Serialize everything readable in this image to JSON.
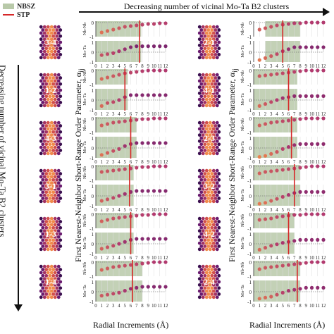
{
  "legend": {
    "nbsz_label": "NBSZ",
    "stp_label": "STP",
    "nbsz_color": "#b8c9a9",
    "stp_color": "#d62728"
  },
  "top_arrow_label": "Decreasing number of vicinal Mo-Ta B2 clusters",
  "left_arrow_label": "Decreasing number of vicinal Mo-Ta B2 clusters",
  "y_axis_title": "First Nearest-Neighbor Short-Range Order Parameter, α",
  "y_axis_title_sub": "ij",
  "x_axis_title": "Radial Increments (Å)",
  "colors": {
    "dot_dark": "#5a1a6e",
    "dot_mid": "#b23a6f",
    "dot_light": "#f08a4b",
    "grid": "#dddddd"
  },
  "chart_data": [
    {
      "type": "scatter",
      "column": "left",
      "structure_labels": [
        "3-4",
        "1-2",
        "4-3",
        "3-1",
        "1-3",
        "1-4"
      ],
      "x": [
        1,
        2,
        3,
        4,
        5,
        6,
        7,
        8,
        9,
        10,
        11,
        12
      ],
      "xlabel": "Radial Increments (Å)",
      "xticks": [
        "0",
        "1",
        "2",
        "3",
        "4",
        "5",
        "6",
        "7",
        "8",
        "9",
        "10",
        "11",
        "12"
      ],
      "rows": [
        {
          "label": "3-4",
          "stp": 7.5,
          "nbsz": [
            0,
            7.8
          ],
          "nbnb": [
            -0.7,
            -0.6,
            -0.5,
            -0.4,
            -0.3,
            -0.25,
            -0.2,
            -0.15,
            -0.1,
            -0.1,
            -0.05,
            -0.05
          ],
          "mota": [
            -0.3,
            -0.2,
            -0.1,
            0.1,
            0.3,
            0.5,
            0.6,
            0.6,
            0.6,
            0.6,
            0.6,
            0.6
          ]
        },
        {
          "label": "1-2",
          "stp": 5.0,
          "nbsz": [
            0,
            5.5
          ],
          "nbnb": [
            -0.6,
            -0.5,
            -0.4,
            -0.3,
            -0.2,
            -0.15,
            -0.1,
            -0.05,
            0,
            0,
            0,
            0
          ],
          "mota": [
            -0.6,
            -0.3,
            -0.2,
            0,
            0.3,
            0.5,
            0.5,
            0.5,
            0.5,
            0.5,
            0.5,
            0.5
          ]
        },
        {
          "label": "4-3",
          "stp": 6.0,
          "nbsz": [
            0,
            7.0
          ],
          "nbnb": [
            -0.5,
            -0.4,
            -0.3,
            -0.25,
            -0.2,
            -0.15,
            -0.1,
            -0.05,
            -0.05,
            0,
            0,
            0
          ],
          "mota": [
            -0.7,
            -0.5,
            -0.3,
            -0.1,
            0.2,
            0.4,
            0.5,
            0.5,
            0.5,
            0.5,
            0.5,
            0.5
          ]
        },
        {
          "label": "3-1",
          "stp": 5.8,
          "nbsz": [
            0,
            6.5
          ],
          "nbnb": [
            -0.4,
            -0.35,
            -0.3,
            -0.25,
            -0.2,
            -0.15,
            -0.1,
            -0.05,
            -0.05,
            0,
            0,
            0
          ],
          "mota": [
            -0.5,
            -0.35,
            -0.2,
            0,
            0.2,
            0.4,
            0.5,
            0.5,
            0.5,
            0.5,
            0.5,
            0.5
          ]
        },
        {
          "label": "1-3",
          "stp": 6.0,
          "nbsz": [
            0,
            6.5
          ],
          "nbnb": [
            -0.5,
            -0.4,
            -0.3,
            -0.25,
            -0.2,
            -0.15,
            -0.1,
            -0.05,
            -0.05,
            0,
            0,
            0
          ],
          "mota": [
            -0.5,
            -0.35,
            -0.2,
            0,
            0.2,
            0.4,
            0.5,
            0.5,
            0.5,
            0.5,
            0.5,
            0.5
          ]
        },
        {
          "label": "1-4",
          "stp": 6.3,
          "nbsz": [
            0,
            8.0
          ],
          "nbnb": [
            -0.55,
            -0.45,
            -0.35,
            -0.3,
            -0.25,
            -0.2,
            -0.15,
            -0.1,
            -0.05,
            0,
            0,
            0
          ],
          "mota": [
            -0.4,
            -0.3,
            -0.2,
            -0.1,
            0.1,
            0.3,
            0.4,
            0.5,
            0.5,
            0.5,
            0.5,
            0.5
          ]
        }
      ]
    },
    {
      "type": "scatter",
      "column": "right",
      "structure_labels": [
        "2-1",
        "4-1",
        "2-3",
        "3-2",
        "4-2",
        "2-4"
      ],
      "x": [
        1,
        2,
        3,
        4,
        5,
        6,
        7,
        8,
        9,
        10,
        11,
        12
      ],
      "xlabel": "Radial Increments (Å)",
      "xticks": [
        "0",
        "1",
        "2",
        "3",
        "4",
        "5",
        "6",
        "7",
        "8",
        "9",
        "10",
        "11",
        "12"
      ],
      "rows": [
        {
          "label": "2-1",
          "stp": 5.0,
          "nbsz": [
            2,
            8.0
          ],
          "nbnb": [
            -0.5,
            -0.4,
            -0.3,
            -0.2,
            -0.15,
            -0.1,
            -0.05,
            -0.05,
            0,
            0,
            0,
            0
          ],
          "mota": [
            -0.8,
            -0.6,
            -0.4,
            -0.2,
            0.1,
            0.3,
            0.5,
            0.5,
            0.5,
            0.5,
            0.5,
            0.5
          ]
        },
        {
          "label": "4-1",
          "stp": 6.0,
          "nbsz": [
            0,
            7.5
          ],
          "nbnb": [
            -0.4,
            -0.35,
            -0.3,
            -0.25,
            -0.2,
            -0.15,
            -0.1,
            -0.05,
            0,
            0,
            0,
            0
          ],
          "mota": [
            -0.6,
            -0.4,
            -0.2,
            0,
            0.2,
            0.3,
            0.4,
            0.4,
            0.4,
            0.4,
            0.4,
            0.4
          ]
        },
        {
          "label": "2-3",
          "stp": 6.5,
          "nbsz": [
            0,
            7.5
          ],
          "nbnb": [
            -0.5,
            -0.4,
            -0.3,
            -0.25,
            -0.2,
            -0.15,
            -0.1,
            -0.05,
            0,
            0,
            0,
            0
          ],
          "mota": [
            -0.9,
            -0.8,
            -0.6,
            -0.4,
            -0.1,
            0.1,
            0.3,
            0.4,
            0.4,
            0.4,
            0.4,
            0.4
          ]
        },
        {
          "label": "3-2",
          "stp": 7.0,
          "nbsz": [
            0,
            8.0
          ],
          "nbnb": [
            -0.5,
            -0.4,
            -0.35,
            -0.3,
            -0.25,
            -0.2,
            -0.15,
            -0.1,
            -0.05,
            0,
            0,
            0
          ],
          "mota": [
            -0.8,
            -0.7,
            -0.5,
            -0.3,
            -0.1,
            0.1,
            0.3,
            0.4,
            0.4,
            0.4,
            0.4,
            0.4
          ]
        },
        {
          "label": "4-2",
          "stp": 6.0,
          "nbsz": [
            0,
            7.0
          ],
          "nbnb": [
            -0.4,
            -0.35,
            -0.3,
            -0.2,
            -0.15,
            -0.1,
            -0.05,
            -0.05,
            0,
            0,
            0,
            0
          ],
          "mota": [
            -0.6,
            -0.4,
            -0.2,
            -0.05,
            0.1,
            0.2,
            0.3,
            0.4,
            0.4,
            0.4,
            0.4,
            0.4
          ]
        },
        {
          "label": "2-4",
          "stp": 7.5,
          "nbsz": [
            0,
            8.0
          ],
          "nbnb": [
            -0.5,
            -0.4,
            -0.35,
            -0.3,
            -0.25,
            -0.2,
            -0.15,
            -0.1,
            -0.05,
            0,
            0,
            0
          ],
          "mota": [
            -0.7,
            -0.6,
            -0.5,
            -0.3,
            -0.1,
            0.1,
            0.2,
            0.3,
            0.4,
            0.4,
            0.4,
            0.4
          ]
        }
      ]
    }
  ],
  "row_labels": {
    "top": "Nb-Nb",
    "bottom": "Mo-Ta"
  },
  "y_ticks_top": [
    "0",
    "-1"
  ],
  "y_ticks_bottom": [
    "1",
    "0",
    "-1"
  ]
}
